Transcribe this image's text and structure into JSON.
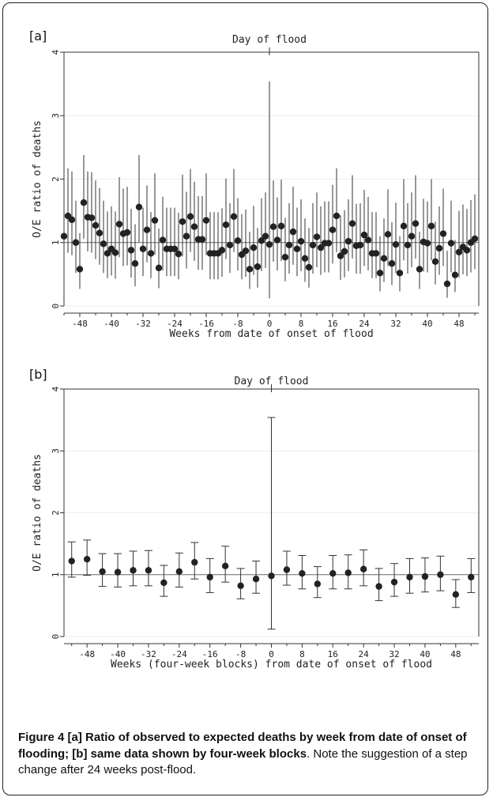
{
  "chart_data": [
    {
      "type": "scatter",
      "panel_label": "[a]",
      "title": "Day of flood",
      "xlabel": "Weeks from date of onset of flood",
      "ylabel": "O/E ratio of deaths",
      "xlim": [
        -52,
        53
      ],
      "ylim": [
        0,
        4
      ],
      "xticks": [
        -48,
        -40,
        -32,
        -24,
        -16,
        -8,
        0,
        8,
        16,
        24,
        32,
        40,
        48
      ],
      "yticks": [
        0,
        1,
        2,
        3,
        4
      ],
      "reference_line_y": 1,
      "event_line_x": 0,
      "x": [
        -52,
        -51,
        -50,
        -49,
        -48,
        -47,
        -46,
        -45,
        -44,
        -43,
        -42,
        -41,
        -40,
        -39,
        -38,
        -37,
        -36,
        -35,
        -34,
        -33,
        -32,
        -31,
        -30,
        -29,
        -28,
        -27,
        -26,
        -25,
        -24,
        -23,
        -22,
        -21,
        -20,
        -19,
        -18,
        -17,
        -16,
        -15,
        -14,
        -13,
        -12,
        -11,
        -10,
        -9,
        -8,
        -7,
        -6,
        -5,
        -4,
        -3,
        -2,
        -1,
        0,
        1,
        2,
        3,
        4,
        5,
        6,
        7,
        8,
        9,
        10,
        11,
        12,
        13,
        14,
        15,
        16,
        17,
        18,
        19,
        20,
        21,
        22,
        23,
        24,
        25,
        26,
        27,
        28,
        29,
        30,
        31,
        32,
        33,
        34,
        35,
        36,
        37,
        38,
        39,
        40,
        41,
        42,
        43,
        44,
        45,
        46,
        47,
        48,
        49,
        50,
        51,
        52
      ],
      "y": [
        1.1,
        1.42,
        1.36,
        1.0,
        0.58,
        1.63,
        1.4,
        1.39,
        1.27,
        1.15,
        0.98,
        0.83,
        0.9,
        0.84,
        1.29,
        1.14,
        1.16,
        0.88,
        0.67,
        1.56,
        0.9,
        1.2,
        0.83,
        1.35,
        0.6,
        1.04,
        0.9,
        0.9,
        0.9,
        0.82,
        1.33,
        1.1,
        1.41,
        1.25,
        1.05,
        1.05,
        1.35,
        0.83,
        0.83,
        0.83,
        0.88,
        1.28,
        0.96,
        1.41,
        1.03,
        0.81,
        0.87,
        0.58,
        0.92,
        0.62,
        1.03,
        1.1,
        0.97,
        1.25,
        1.04,
        1.26,
        0.77,
        0.96,
        1.17,
        0.9,
        1.02,
        0.75,
        0.61,
        0.96,
        1.09,
        0.92,
        0.99,
        0.99,
        1.2,
        1.42,
        0.79,
        0.86,
        1.02,
        1.3,
        0.95,
        0.96,
        1.12,
        1.04,
        0.83,
        0.83,
        0.52,
        0.75,
        1.13,
        0.67,
        0.97,
        0.52,
        1.26,
        0.96,
        1.1,
        1.3,
        0.58,
        1.01,
        0.99,
        1.26,
        0.7,
        0.91,
        1.14,
        0.35,
        0.99,
        0.49,
        0.85,
        0.93,
        0.88,
        1.0,
        1.06
      ],
      "y_low": [
        0.57,
        0.84,
        0.8,
        0.52,
        0.27,
        1.06,
        0.86,
        0.84,
        0.74,
        0.65,
        0.52,
        0.44,
        0.48,
        0.43,
        0.77,
        0.63,
        0.64,
        0.45,
        0.31,
        1.0,
        0.47,
        0.69,
        0.44,
        0.81,
        0.28,
        0.56,
        0.47,
        0.47,
        0.47,
        0.42,
        0.78,
        0.59,
        0.85,
        0.71,
        0.57,
        0.57,
        0.8,
        0.42,
        0.42,
        0.42,
        0.46,
        0.74,
        0.52,
        0.85,
        0.56,
        0.42,
        0.46,
        0.27,
        0.49,
        0.29,
        0.55,
        0.6,
        0.12,
        0.7,
        0.56,
        0.71,
        0.39,
        0.51,
        0.65,
        0.47,
        0.55,
        0.38,
        0.29,
        0.51,
        0.61,
        0.49,
        0.53,
        0.53,
        0.67,
        0.85,
        0.41,
        0.45,
        0.55,
        0.75,
        0.51,
        0.51,
        0.63,
        0.56,
        0.44,
        0.44,
        0.23,
        0.38,
        0.63,
        0.33,
        0.52,
        0.23,
        0.72,
        0.51,
        0.61,
        0.75,
        0.27,
        0.54,
        0.53,
        0.72,
        0.34,
        0.49,
        0.63,
        0.13,
        0.53,
        0.22,
        0.45,
        0.5,
        0.47,
        0.53,
        0.58
      ],
      "y_high": [
        1.78,
        2.17,
        2.12,
        1.66,
        1.15,
        2.38,
        2.12,
        2.11,
        1.98,
        1.86,
        1.66,
        1.49,
        1.57,
        1.49,
        2.03,
        1.85,
        1.88,
        1.53,
        1.29,
        2.38,
        1.55,
        1.9,
        1.48,
        2.09,
        1.22,
        1.72,
        1.55,
        1.55,
        1.55,
        1.47,
        2.07,
        1.8,
        2.16,
        1.96,
        1.73,
        1.73,
        2.09,
        1.48,
        1.48,
        1.48,
        1.54,
        2.01,
        1.62,
        2.16,
        1.7,
        1.45,
        1.52,
        1.17,
        1.58,
        1.23,
        1.7,
        1.79,
        3.54,
        1.98,
        1.71,
        1.99,
        1.39,
        1.62,
        1.88,
        1.55,
        1.68,
        1.38,
        1.23,
        1.62,
        1.79,
        1.57,
        1.65,
        1.65,
        1.91,
        2.17,
        1.43,
        1.51,
        1.68,
        2.06,
        1.61,
        1.62,
        1.83,
        1.72,
        1.48,
        1.48,
        1.1,
        1.38,
        1.84,
        1.32,
        1.63,
        1.1,
        2.0,
        1.62,
        1.79,
        2.06,
        1.17,
        1.69,
        1.65,
        2.0,
        1.33,
        1.57,
        1.85,
        0.87,
        1.66,
        1.04,
        1.5,
        1.6,
        1.53,
        1.67,
        1.76
      ]
    },
    {
      "type": "scatter",
      "panel_label": "[b]",
      "title": "Day of flood",
      "xlabel": "Weeks (four-week blocks) from date of onset of flood",
      "ylabel": "O/E ratio of deaths",
      "xlim": [
        -54,
        54
      ],
      "ylim": [
        0,
        4
      ],
      "xticks": [
        -48,
        -40,
        -32,
        -24,
        -16,
        -8,
        0,
        8,
        16,
        24,
        32,
        40,
        48
      ],
      "yticks": [
        0,
        1,
        2,
        3,
        4
      ],
      "reference_line_y": 1,
      "event_line_x": 0,
      "x": [
        -52,
        -48,
        -44,
        -40,
        -36,
        -32,
        -28,
        -24,
        -20,
        -16,
        -12,
        -8,
        -4,
        0,
        4,
        8,
        12,
        16,
        20,
        24,
        28,
        32,
        36,
        40,
        44,
        48,
        52
      ],
      "y": [
        1.22,
        1.25,
        1.05,
        1.04,
        1.07,
        1.07,
        0.87,
        1.05,
        1.2,
        0.96,
        1.14,
        0.82,
        0.93,
        0.98,
        1.08,
        1.02,
        0.85,
        1.02,
        1.03,
        1.09,
        0.81,
        0.88,
        0.96,
        0.97,
        1.0,
        0.68,
        0.96
      ],
      "y_low": [
        0.96,
        0.99,
        0.81,
        0.8,
        0.82,
        0.82,
        0.65,
        0.8,
        0.93,
        0.71,
        0.88,
        0.61,
        0.7,
        0.12,
        0.83,
        0.77,
        0.63,
        0.77,
        0.77,
        0.82,
        0.58,
        0.65,
        0.7,
        0.72,
        0.74,
        0.47,
        0.71
      ],
      "y_high": [
        1.53,
        1.56,
        1.34,
        1.34,
        1.38,
        1.39,
        1.15,
        1.35,
        1.52,
        1.26,
        1.46,
        1.1,
        1.22,
        3.54,
        1.38,
        1.31,
        1.13,
        1.31,
        1.32,
        1.4,
        1.1,
        1.18,
        1.26,
        1.27,
        1.3,
        0.92,
        1.26
      ]
    }
  ],
  "caption": {
    "figure_label": "Figure 4",
    "bold_text": " [a] Ratio of observed to expected deaths by week from date of onset of flooding; [b] same data shown by four-week blocks",
    "normal_text": ". Note the suggestion of a step change after 24 weeks post-flood."
  }
}
